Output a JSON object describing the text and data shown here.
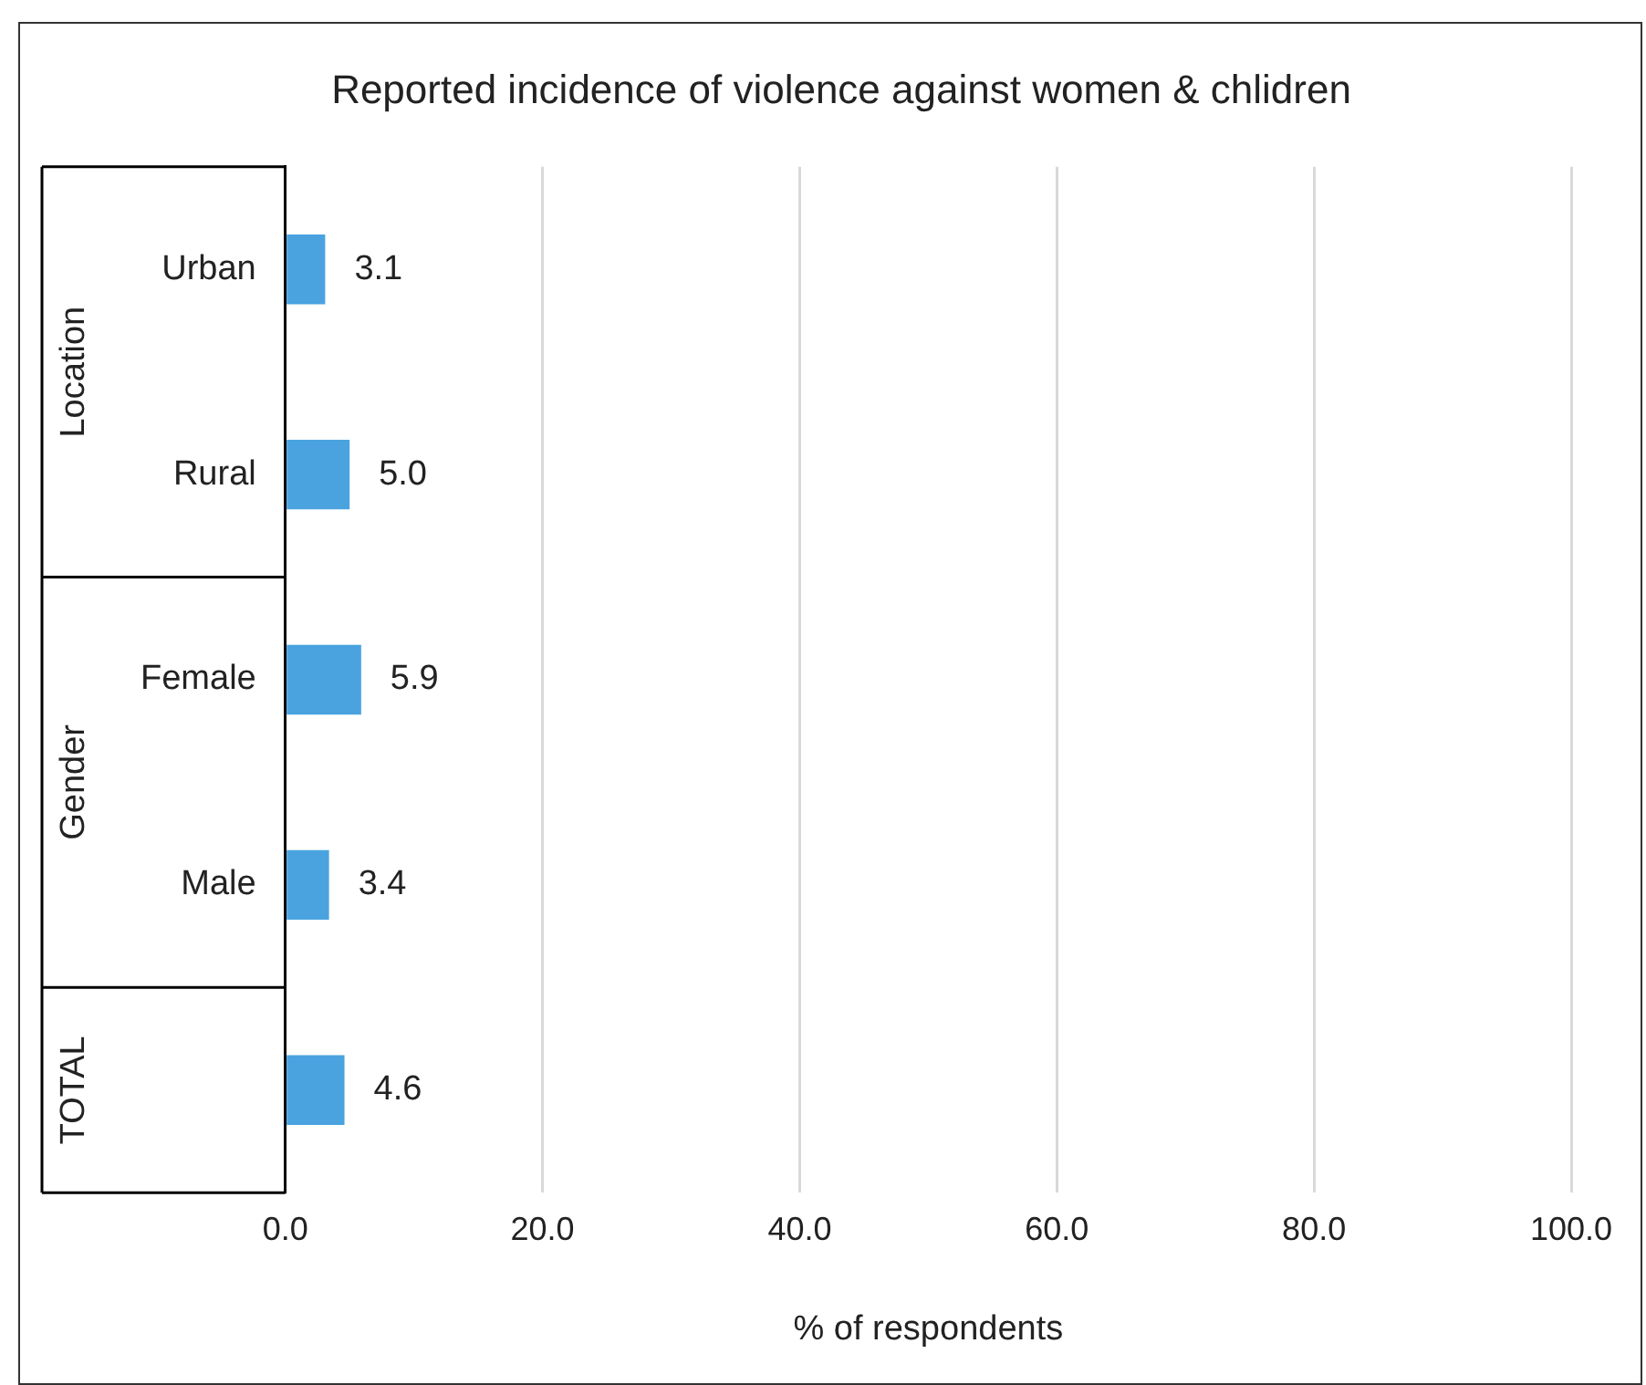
{
  "chart_data": {
    "type": "bar",
    "orientation": "horizontal",
    "title": "Reported incidence of violence against women & chlidren",
    "xlabel": "% of respondents",
    "categories": [
      "Urban",
      "Rural",
      "Female",
      "Male",
      null
    ],
    "values": [
      3.1,
      5.0,
      5.9,
      3.4,
      4.6
    ],
    "value_labels": [
      "3.1",
      "5.0",
      "5.9",
      "3.4",
      "4.6"
    ],
    "color": "#4aa3df",
    "xlim": [
      0,
      100
    ],
    "xticks": [
      {
        "value": 0,
        "label": "0.0"
      },
      {
        "value": 20,
        "label": "20.0"
      },
      {
        "value": 40,
        "label": "40.0"
      },
      {
        "value": 60,
        "label": "60.0"
      },
      {
        "value": 80,
        "label": "80.0"
      },
      {
        "value": 100,
        "label": "100.0"
      }
    ],
    "annotations": [
      "Location",
      "Gender",
      "TOTAL"
    ],
    "grid": "x",
    "legend": false
  }
}
